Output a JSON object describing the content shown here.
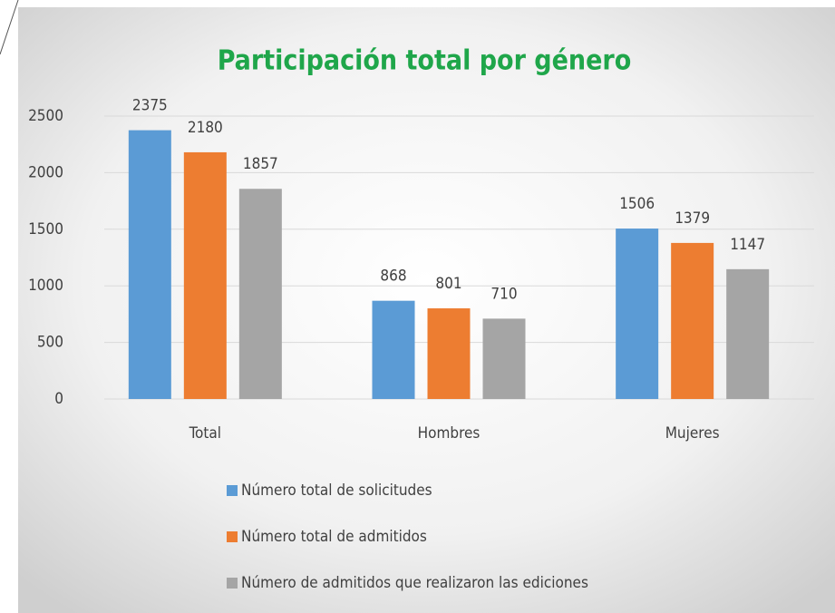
{
  "chart_data": {
    "type": "bar",
    "title": "Participación total por género",
    "categories": [
      "Total",
      "Hombres",
      "Mujeres"
    ],
    "series": [
      {
        "name": "Número total de solicitudes",
        "color": "#5b9bd5",
        "values": [
          2375,
          868,
          1506
        ]
      },
      {
        "name": "Número total de admitidos",
        "color": "#ed7d31",
        "values": [
          2180,
          801,
          1379
        ]
      },
      {
        "name": "Número de admitidos que realizaron las ediciones",
        "color": "#a5a5a5",
        "values": [
          1857,
          710,
          1147
        ]
      }
    ],
    "ylim": [
      0,
      2500
    ],
    "yticks": [
      0,
      500,
      1000,
      1500,
      2000,
      2500
    ],
    "grid": true,
    "legend": "bottom"
  }
}
